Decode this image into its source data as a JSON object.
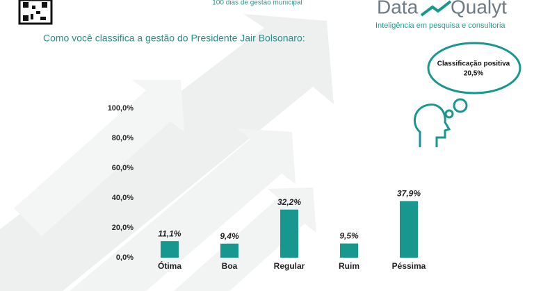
{
  "header": {
    "subtitle": "100 dias de gestão municipal",
    "logo_left": "Data",
    "logo_right": "Qualyt",
    "logo_tagline": "Inteligência em pesquisa e consultoria"
  },
  "chart_data": {
    "type": "bar",
    "title": "Como você classifica a gestão do Presidente Jair Bolsonaro:",
    "categories": [
      "Ótima",
      "Boa",
      "Regular",
      "Ruim",
      "Péssima"
    ],
    "values": [
      11.1,
      9.4,
      32.2,
      9.5,
      37.9
    ],
    "value_labels": [
      "11,1%",
      "9,4%",
      "32,2%",
      "9,5%",
      "37,9%"
    ],
    "color": "#17978d",
    "ylim": [
      0,
      100
    ],
    "yticks": [
      {
        "value": 0,
        "label": "0,0%"
      },
      {
        "value": 20,
        "label": "20,0%"
      },
      {
        "value": 40,
        "label": "40,0%"
      },
      {
        "value": 60,
        "label": "60,0%"
      },
      {
        "value": 80,
        "label": "80,0%"
      },
      {
        "value": 100,
        "label": "100,0%"
      }
    ],
    "annotation": {
      "title": "Classificação positiva",
      "value_label": "20,5%"
    }
  }
}
